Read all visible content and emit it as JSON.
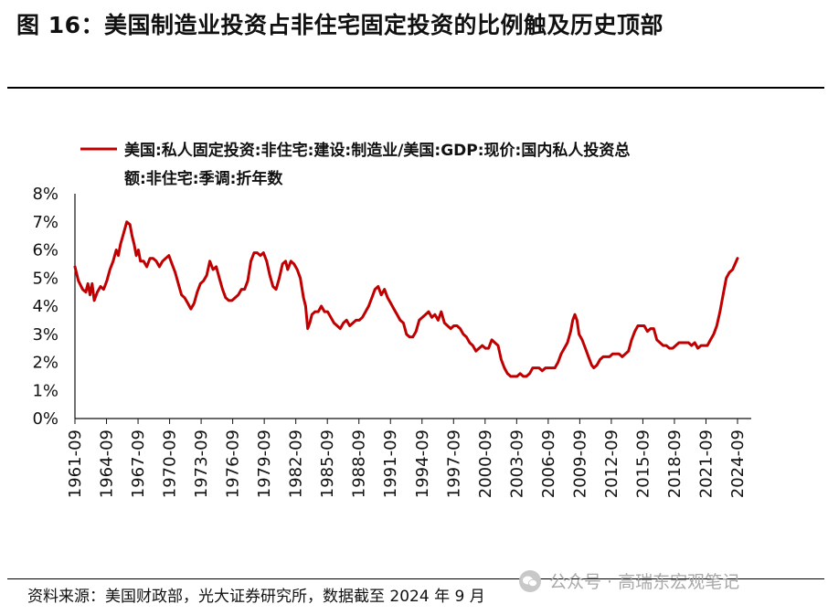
{
  "figure": {
    "title": "图 16：美国制造业投资占非住宅固定投资的比例触及历史顶部",
    "source": "资料来源：美国财政部，光大证券研究所，数据截至 2024  年 9 月",
    "watermark": "公众号 · 高瑞东宏观笔记",
    "watermark_icon": "wechat-icon"
  },
  "chart_data": {
    "type": "line",
    "title": "",
    "xlabel": "",
    "ylabel": "",
    "ylim": [
      0,
      8
    ],
    "y_ticks": [
      "0%",
      "1%",
      "2%",
      "3%",
      "4%",
      "5%",
      "6%",
      "7%",
      "8%"
    ],
    "x_ticks": [
      "1961-09",
      "1964-09",
      "1967-09",
      "1970-09",
      "1973-09",
      "1976-09",
      "1979-09",
      "1982-09",
      "1985-09",
      "1988-09",
      "1991-09",
      "1994-09",
      "1997-09",
      "2000-09",
      "2003-09",
      "2006-09",
      "2009-09",
      "2012-09",
      "2015-09",
      "2018-09",
      "2021-09",
      "2024-09"
    ],
    "x_range": [
      1961.67,
      2024.67
    ],
    "grid": false,
    "legend_position": "top-left",
    "series": [
      {
        "name": "美国:私人固定投资:非住宅:建设:制造业/美国:GDP:现价:国内私人投资总额:非住宅:季调:折年数",
        "color": "#c00000",
        "points": [
          [
            1961.67,
            5.4
          ],
          [
            1962.0,
            4.9
          ],
          [
            1962.4,
            4.6
          ],
          [
            1962.7,
            4.5
          ],
          [
            1962.9,
            4.8
          ],
          [
            1963.1,
            4.4
          ],
          [
            1963.3,
            4.8
          ],
          [
            1963.5,
            4.2
          ],
          [
            1963.8,
            4.5
          ],
          [
            1964.1,
            4.7
          ],
          [
            1964.4,
            4.6
          ],
          [
            1964.7,
            4.9
          ],
          [
            1965.0,
            5.3
          ],
          [
            1965.3,
            5.6
          ],
          [
            1965.6,
            6.0
          ],
          [
            1965.8,
            5.8
          ],
          [
            1966.0,
            6.2
          ],
          [
            1966.3,
            6.6
          ],
          [
            1966.6,
            7.0
          ],
          [
            1966.9,
            6.9
          ],
          [
            1967.1,
            6.5
          ],
          [
            1967.3,
            6.2
          ],
          [
            1967.5,
            5.8
          ],
          [
            1967.7,
            6.0
          ],
          [
            1967.9,
            5.6
          ],
          [
            1968.2,
            5.6
          ],
          [
            1968.5,
            5.4
          ],
          [
            1968.8,
            5.7
          ],
          [
            1969.1,
            5.7
          ],
          [
            1969.4,
            5.6
          ],
          [
            1969.7,
            5.4
          ],
          [
            1970.0,
            5.6
          ],
          [
            1970.3,
            5.7
          ],
          [
            1970.6,
            5.8
          ],
          [
            1970.9,
            5.5
          ],
          [
            1971.2,
            5.2
          ],
          [
            1971.5,
            4.8
          ],
          [
            1971.8,
            4.4
          ],
          [
            1972.1,
            4.3
          ],
          [
            1972.4,
            4.1
          ],
          [
            1972.7,
            3.9
          ],
          [
            1973.0,
            4.1
          ],
          [
            1973.3,
            4.5
          ],
          [
            1973.6,
            4.8
          ],
          [
            1973.9,
            4.9
          ],
          [
            1974.2,
            5.1
          ],
          [
            1974.5,
            5.6
          ],
          [
            1974.8,
            5.3
          ],
          [
            1975.1,
            5.4
          ],
          [
            1975.4,
            5.0
          ],
          [
            1975.7,
            4.6
          ],
          [
            1976.0,
            4.3
          ],
          [
            1976.3,
            4.2
          ],
          [
            1976.6,
            4.2
          ],
          [
            1976.9,
            4.3
          ],
          [
            1977.2,
            4.4
          ],
          [
            1977.5,
            4.6
          ],
          [
            1977.8,
            4.6
          ],
          [
            1978.1,
            4.9
          ],
          [
            1978.4,
            5.6
          ],
          [
            1978.7,
            5.9
          ],
          [
            1979.0,
            5.9
          ],
          [
            1979.3,
            5.8
          ],
          [
            1979.6,
            5.9
          ],
          [
            1979.9,
            5.6
          ],
          [
            1980.2,
            5.1
          ],
          [
            1980.5,
            4.7
          ],
          [
            1980.8,
            4.6
          ],
          [
            1981.1,
            5.0
          ],
          [
            1981.4,
            5.5
          ],
          [
            1981.7,
            5.6
          ],
          [
            1981.9,
            5.3
          ],
          [
            1982.2,
            5.6
          ],
          [
            1982.5,
            5.5
          ],
          [
            1982.8,
            5.3
          ],
          [
            1983.1,
            5.0
          ],
          [
            1983.4,
            4.3
          ],
          [
            1983.6,
            4.0
          ],
          [
            1983.8,
            3.2
          ],
          [
            1984.0,
            3.4
          ],
          [
            1984.2,
            3.7
          ],
          [
            1984.5,
            3.8
          ],
          [
            1984.8,
            3.8
          ],
          [
            1985.1,
            4.0
          ],
          [
            1985.4,
            3.8
          ],
          [
            1985.7,
            3.8
          ],
          [
            1986.0,
            3.6
          ],
          [
            1986.3,
            3.4
          ],
          [
            1986.6,
            3.3
          ],
          [
            1986.9,
            3.2
          ],
          [
            1987.2,
            3.4
          ],
          [
            1987.5,
            3.5
          ],
          [
            1987.8,
            3.3
          ],
          [
            1988.1,
            3.4
          ],
          [
            1988.4,
            3.5
          ],
          [
            1988.7,
            3.5
          ],
          [
            1989.0,
            3.6
          ],
          [
            1989.3,
            3.8
          ],
          [
            1989.6,
            4.0
          ],
          [
            1989.9,
            4.3
          ],
          [
            1990.2,
            4.6
          ],
          [
            1990.5,
            4.7
          ],
          [
            1990.8,
            4.4
          ],
          [
            1991.1,
            4.6
          ],
          [
            1991.4,
            4.3
          ],
          [
            1991.7,
            4.1
          ],
          [
            1992.0,
            3.9
          ],
          [
            1992.3,
            3.7
          ],
          [
            1992.6,
            3.5
          ],
          [
            1992.9,
            3.4
          ],
          [
            1993.2,
            3.0
          ],
          [
            1993.5,
            2.9
          ],
          [
            1993.8,
            2.9
          ],
          [
            1994.1,
            3.1
          ],
          [
            1994.4,
            3.5
          ],
          [
            1994.7,
            3.6
          ],
          [
            1995.0,
            3.7
          ],
          [
            1995.3,
            3.8
          ],
          [
            1995.6,
            3.6
          ],
          [
            1995.9,
            3.7
          ],
          [
            1996.2,
            3.5
          ],
          [
            1996.5,
            3.8
          ],
          [
            1996.8,
            3.4
          ],
          [
            1997.1,
            3.3
          ],
          [
            1997.4,
            3.2
          ],
          [
            1997.7,
            3.3
          ],
          [
            1998.0,
            3.3
          ],
          [
            1998.3,
            3.2
          ],
          [
            1998.6,
            3.0
          ],
          [
            1998.9,
            2.9
          ],
          [
            1999.2,
            2.7
          ],
          [
            1999.5,
            2.6
          ],
          [
            1999.8,
            2.4
          ],
          [
            2000.1,
            2.5
          ],
          [
            2000.4,
            2.6
          ],
          [
            2000.7,
            2.5
          ],
          [
            2001.0,
            2.5
          ],
          [
            2001.3,
            2.8
          ],
          [
            2001.6,
            2.7
          ],
          [
            2001.9,
            2.6
          ],
          [
            2002.2,
            2.1
          ],
          [
            2002.5,
            1.8
          ],
          [
            2002.8,
            1.6
          ],
          [
            2003.1,
            1.5
          ],
          [
            2003.4,
            1.5
          ],
          [
            2003.7,
            1.5
          ],
          [
            2004.0,
            1.6
          ],
          [
            2004.3,
            1.5
          ],
          [
            2004.6,
            1.5
          ],
          [
            2004.9,
            1.6
          ],
          [
            2005.2,
            1.8
          ],
          [
            2005.5,
            1.8
          ],
          [
            2005.8,
            1.8
          ],
          [
            2006.1,
            1.7
          ],
          [
            2006.4,
            1.8
          ],
          [
            2006.7,
            1.8
          ],
          [
            2007.0,
            1.8
          ],
          [
            2007.3,
            1.8
          ],
          [
            2007.6,
            2.0
          ],
          [
            2007.9,
            2.3
          ],
          [
            2008.2,
            2.5
          ],
          [
            2008.5,
            2.7
          ],
          [
            2008.8,
            3.1
          ],
          [
            2009.0,
            3.5
          ],
          [
            2009.2,
            3.7
          ],
          [
            2009.4,
            3.5
          ],
          [
            2009.6,
            3.0
          ],
          [
            2009.9,
            2.8
          ],
          [
            2010.2,
            2.5
          ],
          [
            2010.5,
            2.2
          ],
          [
            2010.8,
            1.9
          ],
          [
            2011.0,
            1.8
          ],
          [
            2011.3,
            1.9
          ],
          [
            2011.6,
            2.1
          ],
          [
            2011.9,
            2.2
          ],
          [
            2012.2,
            2.2
          ],
          [
            2012.5,
            2.2
          ],
          [
            2012.8,
            2.3
          ],
          [
            2013.1,
            2.3
          ],
          [
            2013.4,
            2.3
          ],
          [
            2013.7,
            2.2
          ],
          [
            2014.0,
            2.3
          ],
          [
            2014.3,
            2.4
          ],
          [
            2014.6,
            2.8
          ],
          [
            2014.9,
            3.1
          ],
          [
            2015.2,
            3.3
          ],
          [
            2015.5,
            3.3
          ],
          [
            2015.8,
            3.3
          ],
          [
            2016.1,
            3.1
          ],
          [
            2016.4,
            3.2
          ],
          [
            2016.7,
            3.2
          ],
          [
            2017.0,
            2.8
          ],
          [
            2017.3,
            2.7
          ],
          [
            2017.6,
            2.6
          ],
          [
            2017.9,
            2.6
          ],
          [
            2018.2,
            2.5
          ],
          [
            2018.5,
            2.5
          ],
          [
            2018.8,
            2.6
          ],
          [
            2019.1,
            2.7
          ],
          [
            2019.4,
            2.7
          ],
          [
            2019.7,
            2.7
          ],
          [
            2020.0,
            2.7
          ],
          [
            2020.3,
            2.6
          ],
          [
            2020.6,
            2.7
          ],
          [
            2020.9,
            2.5
          ],
          [
            2021.2,
            2.6
          ],
          [
            2021.5,
            2.6
          ],
          [
            2021.8,
            2.6
          ],
          [
            2022.1,
            2.8
          ],
          [
            2022.4,
            3.0
          ],
          [
            2022.7,
            3.3
          ],
          [
            2023.0,
            3.8
          ],
          [
            2023.3,
            4.4
          ],
          [
            2023.6,
            5.0
          ],
          [
            2023.9,
            5.2
          ],
          [
            2024.2,
            5.3
          ],
          [
            2024.67,
            5.7
          ]
        ]
      }
    ]
  }
}
